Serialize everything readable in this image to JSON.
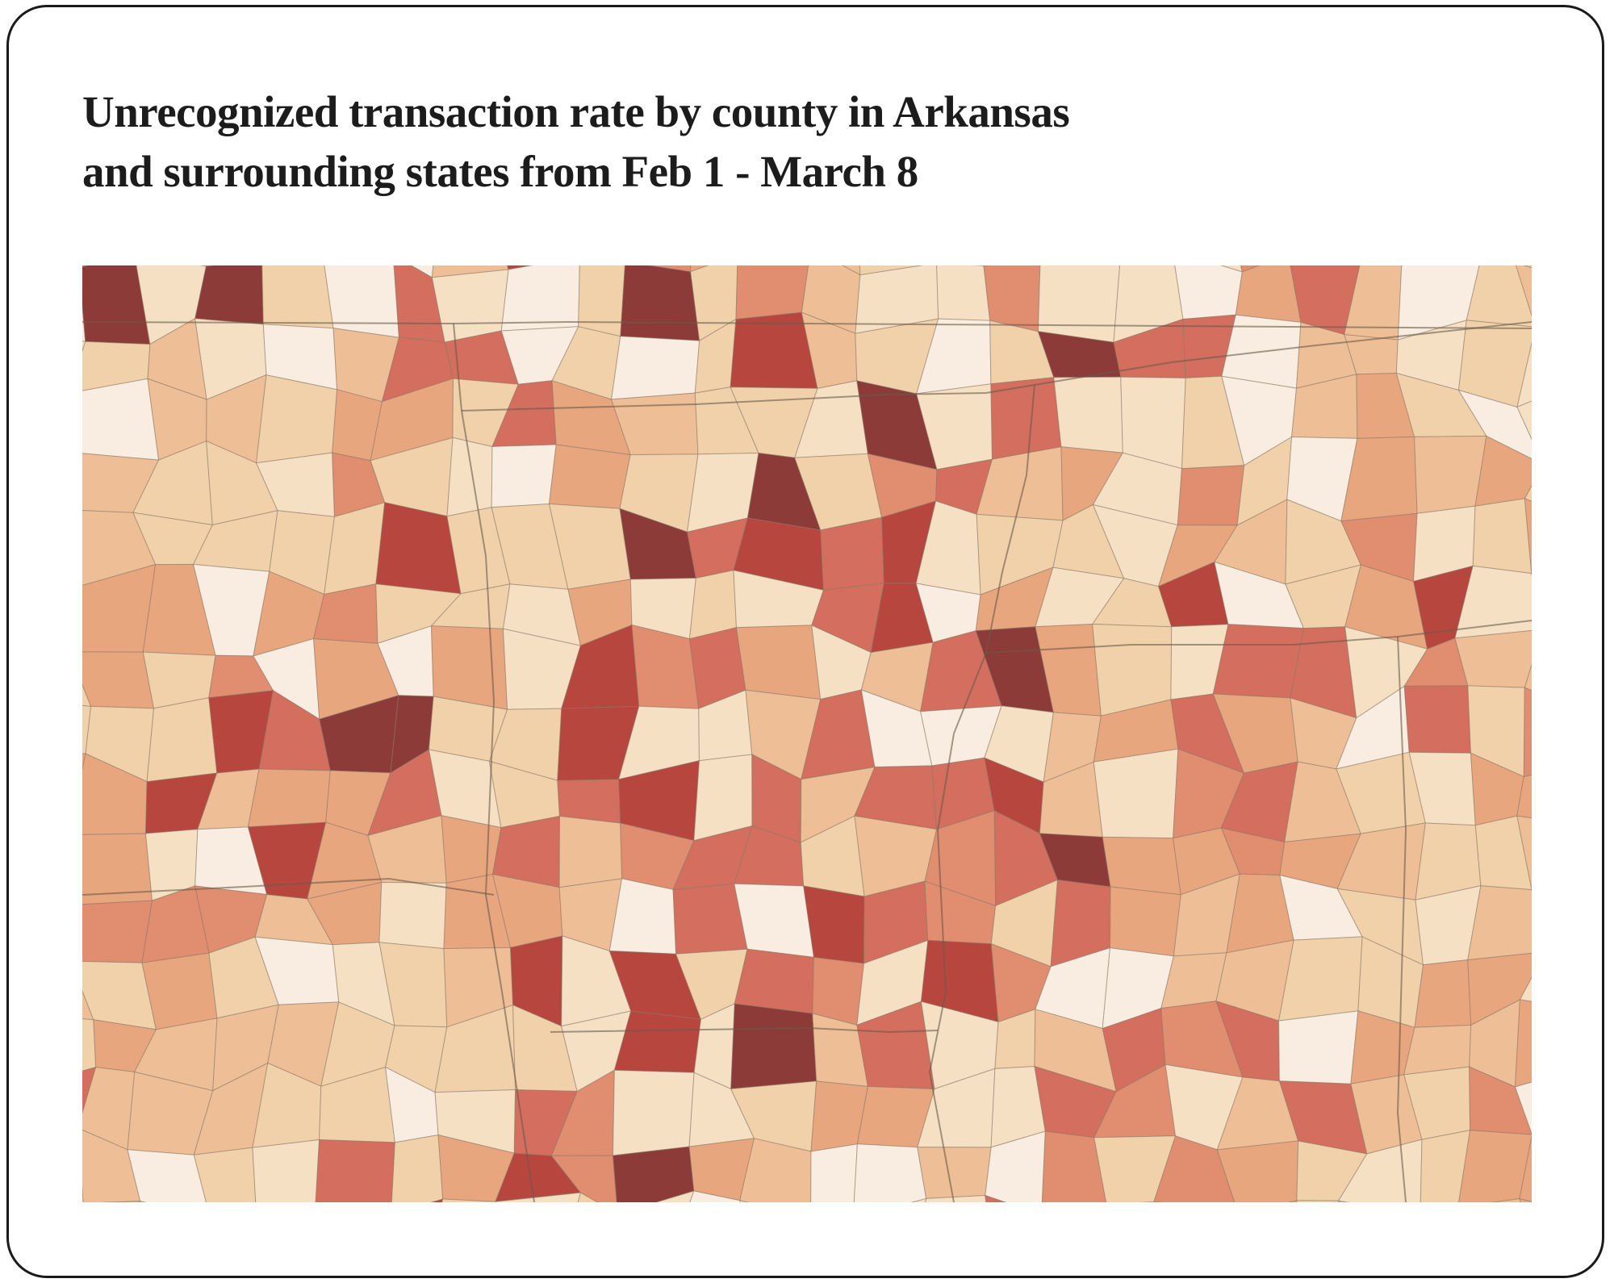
{
  "title": {
    "lines": [
      "Unrecognized transaction rate by county in Arkansas",
      "and surrounding states from Feb 1 - March 8"
    ]
  }
}
